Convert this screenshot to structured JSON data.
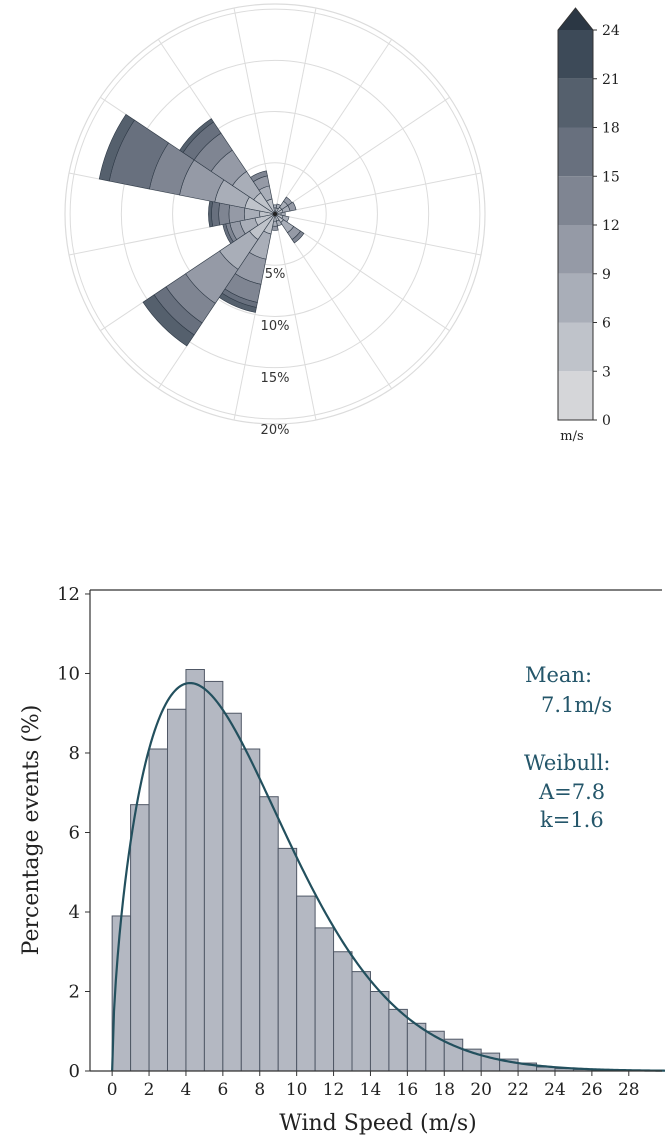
{
  "colors": {
    "rings": "#dcdcdc",
    "bar_fill": "#b4b8c2",
    "bar_stroke": "#505866",
    "curve": "#23505e",
    "annotation": "#24566a",
    "axis": "#333333",
    "colorbar": [
      "#d5d6d9",
      "#bfc3ca",
      "#a9aeb8",
      "#959aa6",
      "#7f8592",
      "#68707e",
      "#55606d",
      "#3d4a58",
      "#2b3744"
    ]
  },
  "chart_data": [
    {
      "type": "wind_rose",
      "radial_labels": [
        "5%",
        "10%",
        "15%",
        "20%"
      ],
      "radial_ticks": [
        5,
        10,
        15,
        20
      ],
      "rlim": [
        0,
        20.5
      ],
      "sectors": 16,
      "speed_bins_label": "m/s",
      "colorbar_ticks": [
        "0",
        "3",
        "6",
        "9",
        "12",
        "15",
        "18",
        "21",
        "24"
      ],
      "colorbar_levels": [
        0,
        3,
        6,
        9,
        12,
        15,
        18,
        21,
        24
      ],
      "direction_cumulative_percent": [
        {
          "dir": 0,
          "stack": [
            0.6,
            0.9
          ]
        },
        {
          "dir": 22.5,
          "stack": [
            0.6,
            1.0
          ]
        },
        {
          "dir": 45,
          "stack": [
            0.8,
            1.5,
            2.0
          ]
        },
        {
          "dir": 67.5,
          "stack": [
            0.8,
            1.5,
            2.1
          ]
        },
        {
          "dir": 90,
          "stack": [
            0.6,
            1.0
          ]
        },
        {
          "dir": 112.5,
          "stack": [
            0.8,
            1.4
          ]
        },
        {
          "dir": 135,
          "stack": [
            1.0,
            2.2,
            3.0,
            3.4
          ]
        },
        {
          "dir": 157.5,
          "stack": [
            0.7,
            1.2
          ]
        },
        {
          "dir": 180,
          "stack": [
            0.7,
            1.2,
            1.6
          ]
        },
        {
          "dir": 202.5,
          "stack": [
            2.0,
            4.5,
            7.0,
            8.8,
            9.3,
            9.8
          ]
        },
        {
          "dir": 225,
          "stack": [
            3.0,
            6.5,
            10.5,
            12.8,
            14.2,
            15.5
          ]
        },
        {
          "dir": 247.5,
          "stack": [
            2.0,
            3.5,
            4.5,
            4.9,
            5.2
          ]
        },
        {
          "dir": 270,
          "stack": [
            1.5,
            3.0,
            4.5,
            5.5,
            6.2,
            6.5
          ]
        },
        {
          "dir": 292.5,
          "stack": [
            3.0,
            6.0,
            9.5,
            12.5,
            16.5,
            17.5
          ]
        },
        {
          "dir": 315,
          "stack": [
            2.5,
            5.0,
            7.5,
            9.5,
            10.8,
            11.2
          ]
        },
        {
          "dir": 337.5,
          "stack": [
            1.5,
            2.8,
            3.8,
            4.3
          ]
        }
      ]
    },
    {
      "type": "bar",
      "xlabel": "Wind Speed (m/s)",
      "ylabel": "Percentage events (%)",
      "xlim": [
        -1.2,
        29.8
      ],
      "ylim": [
        0,
        12.1
      ],
      "x_ticks": [
        "0",
        "2",
        "4",
        "6",
        "8",
        "10",
        "12",
        "14",
        "16",
        "18",
        "20",
        "22",
        "24",
        "26",
        "28"
      ],
      "y_ticks": [
        "0",
        "2",
        "4",
        "6",
        "8",
        "10",
        "12"
      ],
      "bin_width": 1,
      "bin_starts": [
        0,
        1,
        2,
        3,
        4,
        5,
        6,
        7,
        8,
        9,
        10,
        11,
        12,
        13,
        14,
        15,
        16,
        17,
        18,
        19,
        20,
        21,
        22,
        23,
        24,
        25,
        26,
        27,
        28
      ],
      "values": [
        3.9,
        6.7,
        8.1,
        9.1,
        10.1,
        9.8,
        9.0,
        8.1,
        6.9,
        5.6,
        4.4,
        3.6,
        3.0,
        2.5,
        2.0,
        1.55,
        1.2,
        1.0,
        0.8,
        0.55,
        0.45,
        0.3,
        0.2,
        0.1,
        0.06,
        0.04,
        0.02,
        0.01,
        0.01
      ],
      "weibull": {
        "A": 7.8,
        "k": 1.6
      },
      "annotation": {
        "mean_label": "Mean:",
        "mean_value": "7.1m/s",
        "weibull_label": "Weibull:",
        "weibull_A": "A=7.8",
        "weibull_k": "k=1.6"
      }
    }
  ]
}
